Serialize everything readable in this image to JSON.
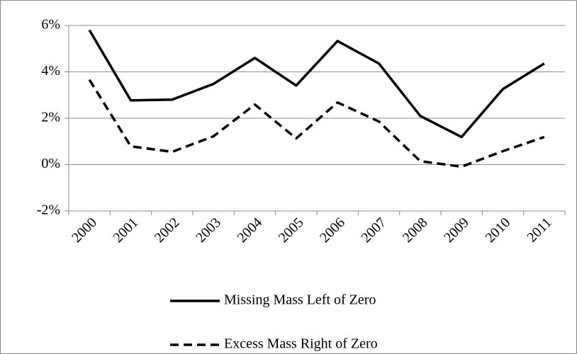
{
  "chart_data": {
    "type": "line",
    "categories": [
      "2000",
      "2001",
      "2002",
      "2003",
      "2004",
      "2005",
      "2006",
      "2007",
      "2008",
      "2009",
      "2010",
      "2011"
    ],
    "series": [
      {
        "name": "Missing Mass Left of Zero",
        "color": "#000000",
        "dash": "solid",
        "values": [
          5.8,
          2.77,
          2.8,
          3.48,
          4.6,
          3.41,
          5.33,
          4.36,
          2.1,
          1.19,
          3.26,
          4.36
        ]
      },
      {
        "name": "Excess Mass Right of Zero",
        "color": "#000000",
        "dash": "dashed",
        "values": [
          3.66,
          0.79,
          0.55,
          1.22,
          2.59,
          1.13,
          2.68,
          1.86,
          0.15,
          -0.09,
          0.58,
          1.19
        ]
      }
    ],
    "ylim": [
      -2,
      6
    ],
    "yticks": [
      {
        "value": -2,
        "label": "-2%"
      },
      {
        "value": 0,
        "label": "0%"
      },
      {
        "value": 2,
        "label": "2%"
      },
      {
        "value": 4,
        "label": "4%"
      },
      {
        "value": 6,
        "label": "6%"
      }
    ],
    "grid": true,
    "legend": "bottom"
  }
}
